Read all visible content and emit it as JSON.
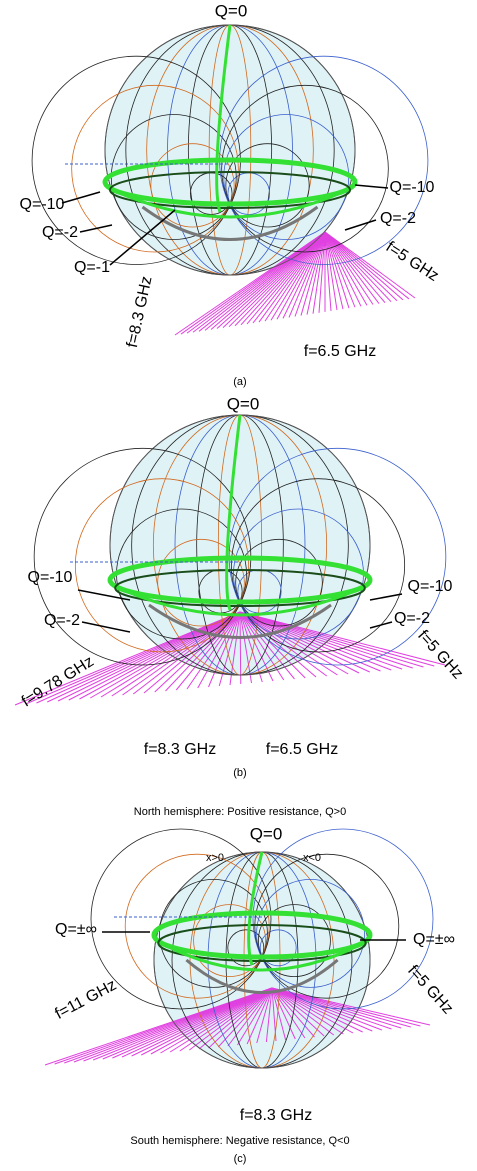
{
  "panels": [
    {
      "caption": "(a)",
      "labels": [
        "Q=0",
        "Q=-10",
        "Q=-2",
        "Q=-1",
        "Q=-10",
        "Q=-2",
        "f=5 GHz",
        "f=8.3 GHz",
        "f=6.5 GHz"
      ]
    },
    {
      "caption": "(b)",
      "labels": [
        "Q=0",
        "Q=-10",
        "Q=-2",
        "f=9.78 GHz",
        "Q=-10",
        "Q=-2",
        "f=5 GHz",
        "f=8.3 GHz",
        "f=6.5 GHz"
      ]
    },
    {
      "caption": "(c)",
      "top_note": "North hemisphere: Positive resistance, Q>0",
      "labels": [
        "Q=0",
        "x>0",
        "x<0",
        "Q=±∞",
        "Q=±∞",
        "f=11 GHz",
        "f=5 GHz",
        "f=8.3 GHz"
      ],
      "bottom_note": "South hemisphere: Negative resistance, Q<0"
    }
  ]
}
